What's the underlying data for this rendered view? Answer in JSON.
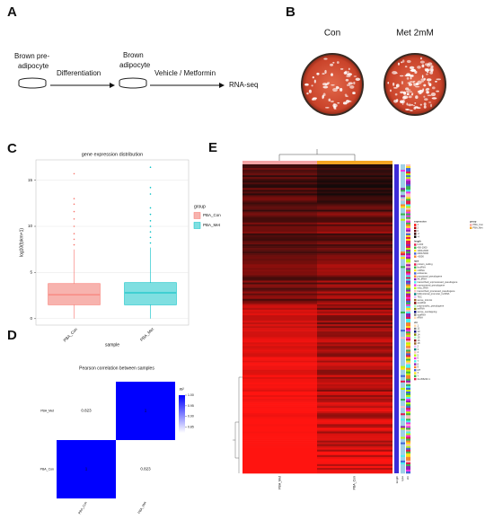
{
  "labels": [
    "A",
    "B",
    "C",
    "D",
    "E"
  ],
  "workflow": {
    "start": [
      "Brown pre-",
      "adipocyte"
    ],
    "step1": "Differentiation",
    "middle": [
      "Brown",
      "adipocyte"
    ],
    "step2": "Vehicle / Metformin",
    "end": "RNA-seq"
  },
  "staining": {
    "conditions": [
      "Con",
      "Met 2mM"
    ]
  },
  "chart_data": [
    {
      "type": "box",
      "title": "gene expression distribution",
      "x_label": "sample",
      "y_label": "log10(fpkm+1)",
      "categories": [
        "PBA_Con",
        "PBA_Met"
      ],
      "series": [
        {
          "name": "PBA_Con",
          "color": "#f8766d",
          "fill": "#f7b3ae",
          "min": 0,
          "q1": 1.5,
          "median": 2.6,
          "q3": 3.8,
          "max": 7.5,
          "outliers": [
            8,
            8.6,
            9.2,
            10,
            10.8,
            11.6,
            12.4,
            13,
            15.7
          ]
        },
        {
          "name": "PBA_Met",
          "color": "#00bfc4",
          "fill": "#7fdfe1",
          "min": 0,
          "q1": 1.5,
          "median": 2.8,
          "q3": 3.9,
          "max": 7.7,
          "outliers": [
            8.2,
            8.8,
            9.4,
            10,
            10.6,
            11.3,
            12,
            13.5,
            14.2,
            16.4
          ]
        }
      ],
      "ylim": [
        -0.7,
        17.2
      ],
      "yticks": [
        0,
        5,
        10,
        15
      ],
      "grid": true,
      "legend_title": "group",
      "legend": "right"
    },
    {
      "type": "heatmap",
      "title": "Pearson correlation between samples",
      "x_categories": [
        "PBA_Con",
        "PBA_Met"
      ],
      "y_categories": [
        "PBA_Con",
        "PBA_Met"
      ],
      "values": [
        [
          1,
          0.823
        ],
        [
          0.823,
          1
        ]
      ],
      "clim": [
        0.823,
        1
      ],
      "colors": [
        "#ffffff",
        "#0000ff"
      ],
      "legend_title": "R²",
      "cticks": [
        0.85,
        {
          "value": 0.9,
          "label": "0.90"
        },
        0.95,
        {
          "value": 1,
          "label": "1.00"
        }
      ]
    }
  ],
  "heatmap": {
    "columns": [
      "PBA_Met",
      "PBA_Con"
    ],
    "annotations": [
      "length",
      "type",
      "chr"
    ],
    "group_legend": {
      "title": "group",
      "items": [
        "PBA_Con",
        "PBA_Met"
      ],
      "colors": [
        "#f4a4a4",
        "#f5a623"
      ]
    },
    "expression_legend": {
      "title": "expression",
      "items": [
        "4",
        "2",
        "0",
        "-2",
        "-4"
      ]
    },
    "length_legend": {
      "title": "length",
      "items": [
        "0-400",
        "400-1000",
        "1000-2000",
        "2000-5000",
        ">5000"
      ]
    },
    "type_legend": {
      "title": "type",
      "items": [
        "protein_coding",
        "lincRNA",
        "miRNA",
        "antisense",
        "processed_pseudogene",
        "Mt_tRNA",
        "transcribed_unprocessed_pseudogene",
        "unprocessed_pseudogene",
        "misc_RNA",
        "transcribed_processed_pseudogene",
        "bidirectional_promoter_lncRNA",
        "TEC",
        "sense_intronic",
        "snoRNA",
        "polymorphic_pseudogene",
        "snRNA",
        "sense_overlapping",
        "scaRNA",
        "rRNA"
      ]
    },
    "chr_legend": {
      "title": "chr",
      "items": [
        "1",
        "11",
        "13",
        "14",
        "15",
        "16",
        "18",
        "2",
        "3",
        "4",
        "5",
        "6",
        "7",
        "8",
        "9",
        "MT",
        "X",
        "Y",
        "GL456233.1"
      ]
    }
  }
}
